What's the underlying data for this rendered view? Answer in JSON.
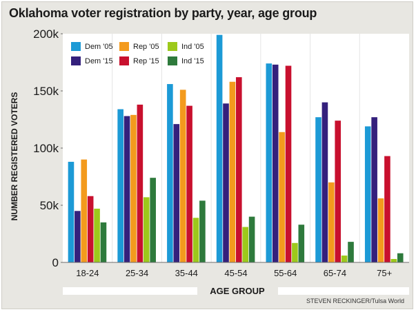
{
  "chart_data": {
    "type": "bar",
    "title": "Oklahoma voter registration by party, year, age group",
    "xlabel": "AGE GROUP",
    "ylabel": "NUMBER REGISTERED VOTERS",
    "ylim": [
      0,
      200000
    ],
    "yticks": [
      0,
      50000,
      100000,
      150000,
      200000
    ],
    "ytick_labels": [
      "0",
      "50k",
      "100k",
      "150k",
      "200k"
    ],
    "categories": [
      "18-24",
      "25-34",
      "35-44",
      "45-54",
      "55-64",
      "65-74",
      "75+"
    ],
    "series": [
      {
        "name": "Dem '05",
        "color": "#1c9ad6",
        "values": [
          88000,
          134000,
          156000,
          199000,
          174000,
          127000,
          119000
        ]
      },
      {
        "name": "Dem '15",
        "color": "#34207c",
        "values": [
          45000,
          128000,
          121000,
          139000,
          173000,
          140000,
          127000
        ]
      },
      {
        "name": "Rep '05",
        "color": "#f39a1d",
        "values": [
          90000,
          129000,
          151000,
          158000,
          114000,
          70000,
          56000
        ]
      },
      {
        "name": "Rep '15",
        "color": "#c8102e",
        "values": [
          58000,
          138000,
          137000,
          162000,
          172000,
          124000,
          93000
        ]
      },
      {
        "name": "Ind '05",
        "color": "#9dc91b",
        "values": [
          47000,
          57000,
          39000,
          31000,
          17000,
          6000,
          3000
        ]
      },
      {
        "name": "Ind '15",
        "color": "#2e7a3c",
        "values": [
          35000,
          74000,
          54000,
          40000,
          33000,
          18000,
          8000
        ]
      }
    ],
    "legend_position": "top-left",
    "credit": "STEVEN RECKINGER/Tulsa World"
  }
}
